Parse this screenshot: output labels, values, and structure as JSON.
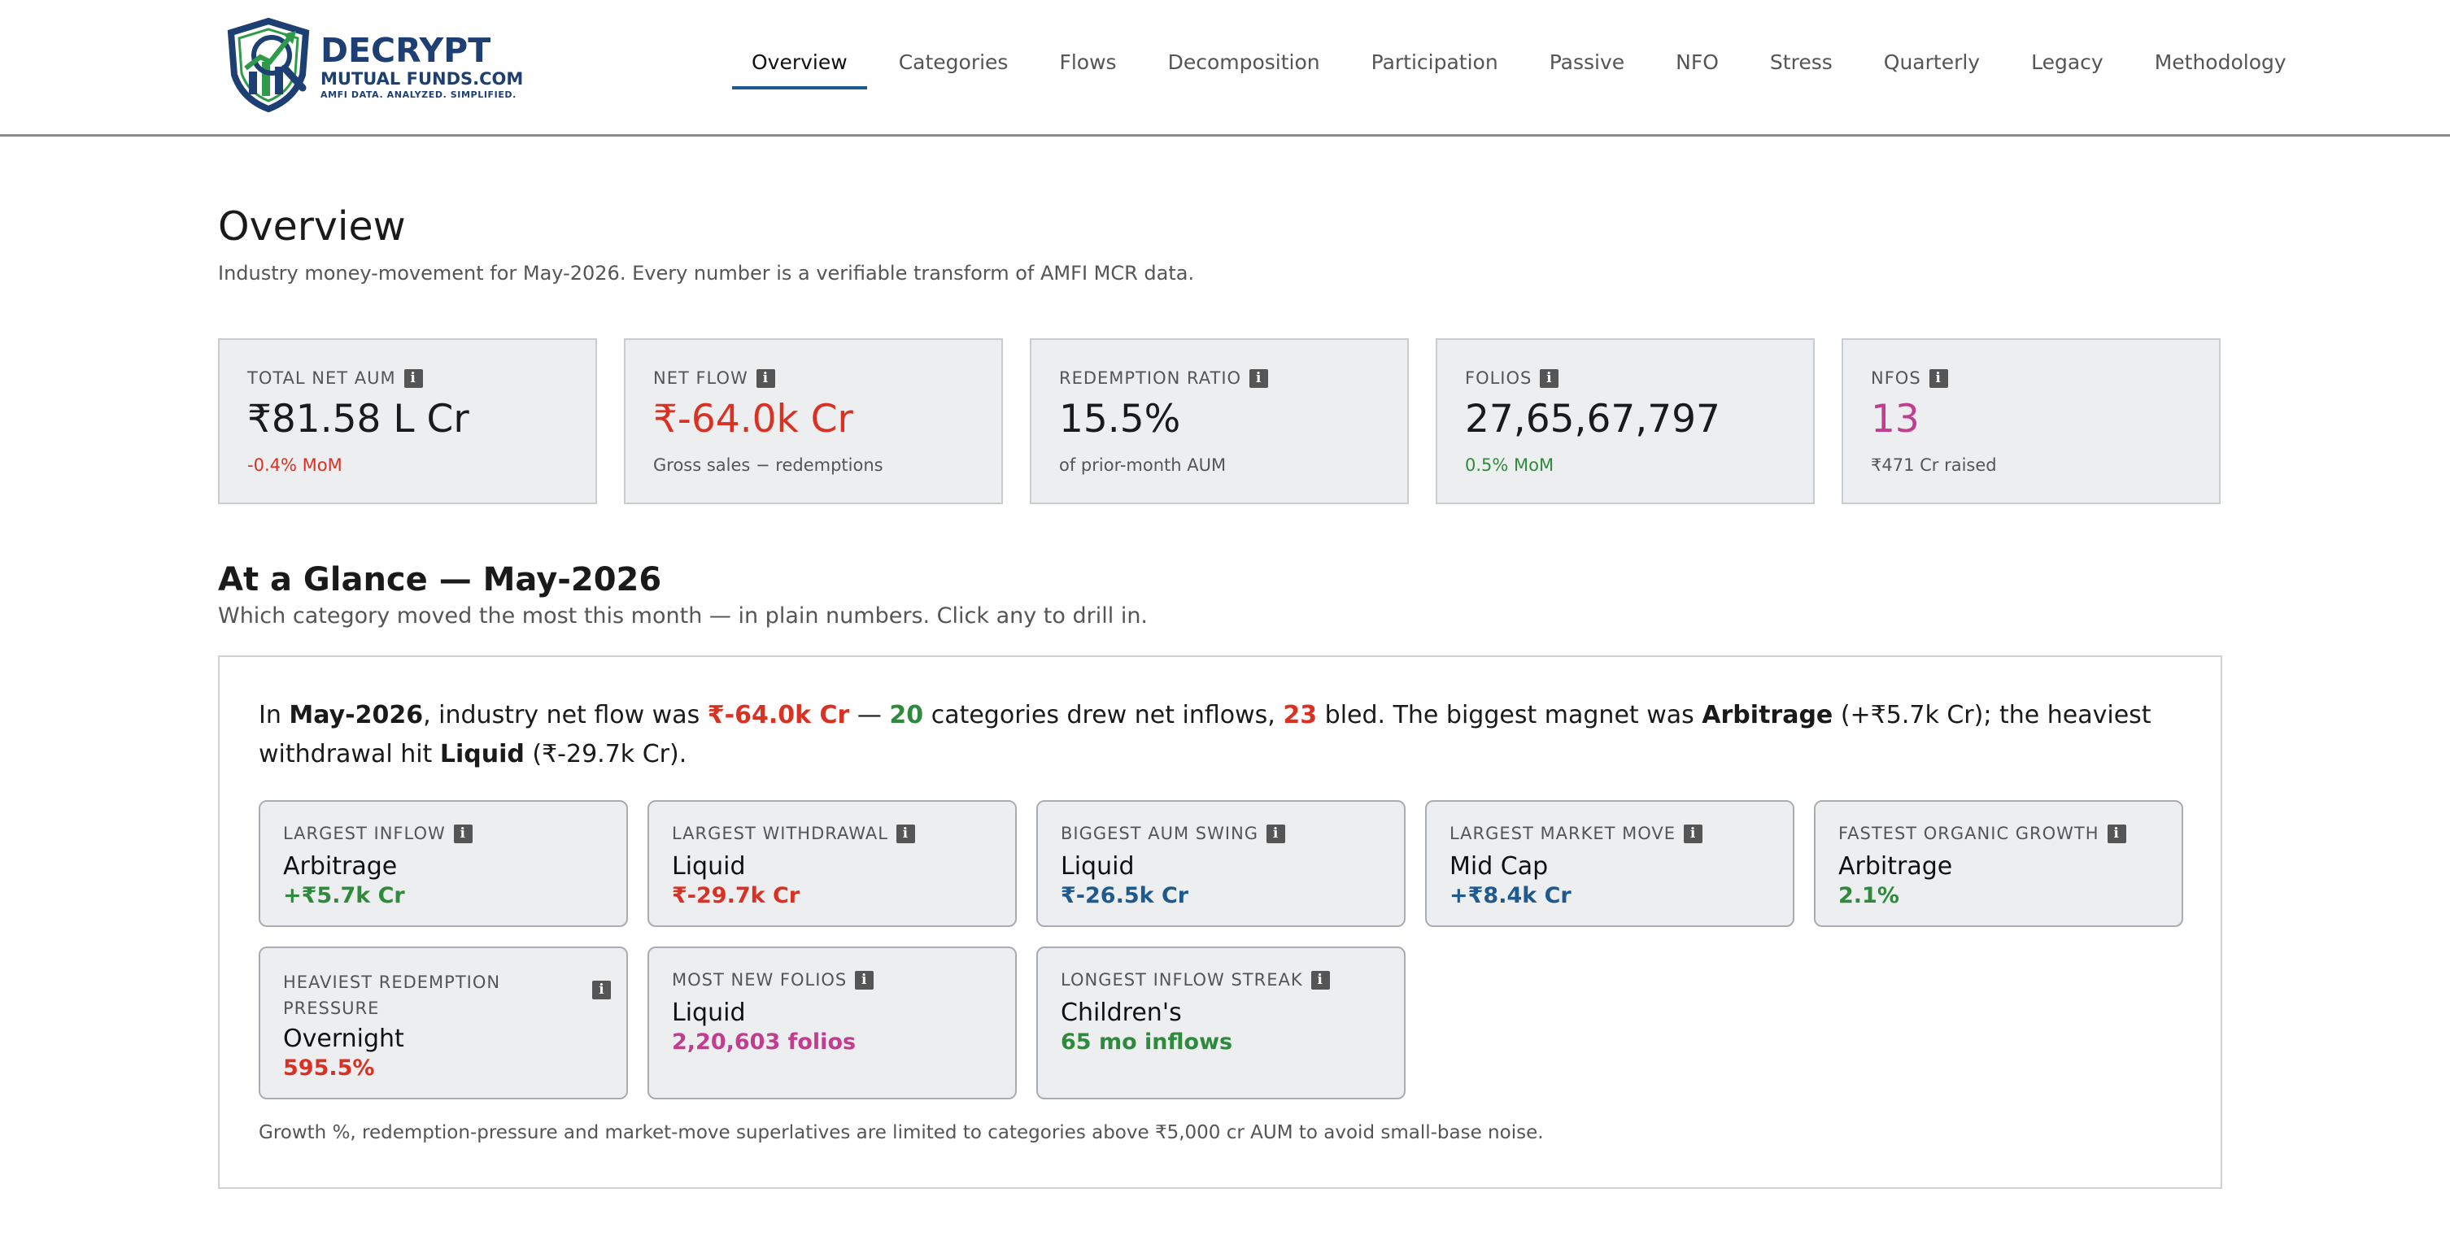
{
  "brand": {
    "name_line1": "DECRYPT",
    "name_line2": "MUTUAL FUNDS.COM",
    "tagline": "AMFI DATA. ANALYZED. SIMPLIFIED.",
    "colors": {
      "navy": "#1d3f73",
      "green": "#2f9a48"
    }
  },
  "nav": {
    "items": [
      "Overview",
      "Categories",
      "Flows",
      "Decomposition",
      "Participation",
      "Passive",
      "NFO",
      "Stress",
      "Quarterly",
      "Legacy",
      "Methodology"
    ],
    "active": "Overview"
  },
  "page": {
    "title": "Overview",
    "subtitle": "Industry money-movement for May-2026. Every number is a verifiable transform of AMFI MCR data."
  },
  "kpis": [
    {
      "label": "TOTAL NET AUM",
      "value": "₹81.58 L Cr",
      "note": "-0.4% MoM",
      "value_color": "#1a1a1a",
      "note_color": "#d93224"
    },
    {
      "label": "NET FLOW",
      "value": "₹-64.0k Cr",
      "note": "Gross sales − redemptions",
      "value_color": "#d93224",
      "note_color": "#555555"
    },
    {
      "label": "REDEMPTION RATIO",
      "value": "15.5%",
      "note": "of prior-month AUM",
      "value_color": "#1a1a1a",
      "note_color": "#555555"
    },
    {
      "label": "FOLIOS",
      "value": "27,65,67,797",
      "note": "0.5% MoM",
      "value_color": "#1a1a1a",
      "note_color": "#2f8a3e"
    },
    {
      "label": "NFOS",
      "value": "13",
      "note": "₹471 Cr raised",
      "value_color": "#c23d8f",
      "note_color": "#555555"
    }
  ],
  "info_glyph": "i",
  "glance": {
    "title": "At a Glance — May-2026",
    "subtitle": "Which category moved the most this month — in plain numbers. Click any to drill in.",
    "summary": {
      "p1": "In ",
      "month": "May-2026",
      "p2": ", industry net flow was ",
      "net_flow": "₹-64.0k Cr",
      "p3": " — ",
      "inflow_count": "20",
      "p4": " categories drew net inflows, ",
      "outflow_count": "23",
      "p5": " bled. The biggest magnet was ",
      "magnet": "Arbitrage",
      "p6": " (+₹5.7k Cr); the heaviest withdrawal hit ",
      "withdrawal": "Liquid",
      "p7": " (₹-29.7k Cr)."
    },
    "cards": [
      {
        "label": "LARGEST INFLOW",
        "name": "Arbitrage",
        "value": "+₹5.7k Cr",
        "value_color": "#2f8a3e"
      },
      {
        "label": "LARGEST WITHDRAWAL",
        "name": "Liquid",
        "value": "₹-29.7k Cr",
        "value_color": "#d93224"
      },
      {
        "label": "BIGGEST AUM SWING",
        "name": "Liquid",
        "value": "₹-26.5k Cr",
        "value_color": "#1f5a8f"
      },
      {
        "label": "LARGEST MARKET MOVE",
        "name": "Mid Cap",
        "value": "+₹8.4k Cr",
        "value_color": "#1f5a8f"
      },
      {
        "label": "FASTEST ORGANIC GROWTH",
        "name": "Arbitrage",
        "value": "2.1%",
        "value_color": "#2f8a3e"
      },
      {
        "label": "HEAVIEST REDEMPTION PRESSURE",
        "name": "Overnight",
        "value": "595.5%",
        "value_color": "#d93224"
      },
      {
        "label": "MOST NEW FOLIOS",
        "name": "Liquid",
        "value": "2,20,603 folios",
        "value_color": "#c23d8f"
      },
      {
        "label": "LONGEST INFLOW STREAK",
        "name": "Children's",
        "value": "65 mo inflows",
        "value_color": "#2f8a3e"
      }
    ],
    "footnote": "Growth %, redemption-pressure and market-move superlatives are limited to categories above ₹5,000 cr AUM to avoid small-base noise."
  }
}
